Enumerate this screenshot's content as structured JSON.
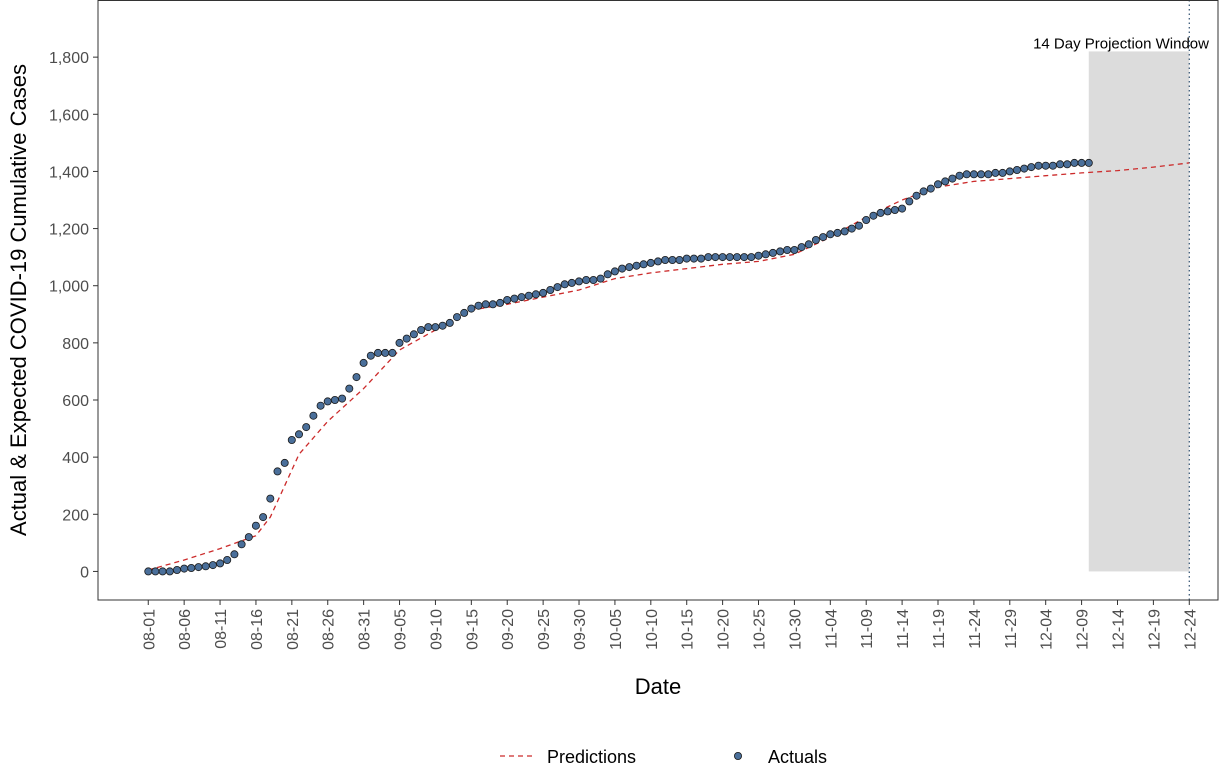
{
  "chart_data": {
    "type": "line",
    "xlabel": "Date",
    "ylabel": "Actual & Expected COVID-19 Cumulative Cases",
    "ylim": [
      -100,
      2000
    ],
    "xlim": [
      "2020-07-25",
      "2020-12-28"
    ],
    "yticks": [
      0,
      200,
      400,
      600,
      800,
      1000,
      1200,
      1400,
      1600,
      1800
    ],
    "ytick_labels": [
      "0",
      "200",
      "400",
      "600",
      "800",
      "1,000",
      "1,200",
      "1,400",
      "1,600",
      "1,800"
    ],
    "xtick_labels": [
      "08-01",
      "08-06",
      "08-11",
      "08-16",
      "08-21",
      "08-26",
      "08-31",
      "09-05",
      "09-10",
      "09-15",
      "09-20",
      "09-25",
      "09-30",
      "10-05",
      "10-10",
      "10-15",
      "10-20",
      "10-25",
      "10-30",
      "11-04",
      "11-09",
      "11-14",
      "11-19",
      "11-24",
      "11-29",
      "12-04",
      "12-09",
      "12-14",
      "12-19",
      "12-24"
    ],
    "xtick_dates": [
      "2020-08-01",
      "2020-08-06",
      "2020-08-11",
      "2020-08-16",
      "2020-08-21",
      "2020-08-26",
      "2020-08-31",
      "2020-09-05",
      "2020-09-10",
      "2020-09-15",
      "2020-09-20",
      "2020-09-25",
      "2020-09-30",
      "2020-10-05",
      "2020-10-10",
      "2020-10-15",
      "2020-10-20",
      "2020-10-25",
      "2020-10-30",
      "2020-11-04",
      "2020-11-09",
      "2020-11-14",
      "2020-11-19",
      "2020-11-24",
      "2020-11-29",
      "2020-12-04",
      "2020-12-09",
      "2020-12-14",
      "2020-12-19",
      "2020-12-24"
    ],
    "grid": false,
    "legend_position": "bottom",
    "annotation": {
      "text": "14 Day Projection Window",
      "x_start": "2020-12-10",
      "x_end": "2020-12-24",
      "y_top": 1820,
      "vline_x": "2020-12-24"
    },
    "series": [
      {
        "name": "Predictions",
        "style": "dashed-line",
        "color": "#cc2b2b",
        "x": [
          "2020-08-01",
          "2020-08-06",
          "2020-08-11",
          "2020-08-16",
          "2020-08-18",
          "2020-08-20",
          "2020-08-22",
          "2020-08-26",
          "2020-08-31",
          "2020-09-05",
          "2020-09-10",
          "2020-09-15",
          "2020-09-20",
          "2020-09-25",
          "2020-09-30",
          "2020-10-05",
          "2020-10-10",
          "2020-10-15",
          "2020-10-20",
          "2020-10-25",
          "2020-10-30",
          "2020-11-04",
          "2020-11-09",
          "2020-11-14",
          "2020-11-19",
          "2020-11-24",
          "2020-11-29",
          "2020-12-04",
          "2020-12-09",
          "2020-12-14",
          "2020-12-19",
          "2020-12-24"
        ],
        "values": [
          5,
          40,
          80,
          125,
          190,
          300,
          410,
          525,
          640,
          775,
          845,
          915,
          935,
          960,
          985,
          1025,
          1045,
          1060,
          1075,
          1085,
          1110,
          1170,
          1240,
          1300,
          1345,
          1365,
          1375,
          1385,
          1395,
          1403,
          1415,
          1430
        ]
      },
      {
        "name": "Actuals",
        "style": "points",
        "color": "#4a6f9a",
        "x": [
          "2020-08-01",
          "2020-08-02",
          "2020-08-03",
          "2020-08-04",
          "2020-08-05",
          "2020-08-06",
          "2020-08-07",
          "2020-08-08",
          "2020-08-09",
          "2020-08-10",
          "2020-08-11",
          "2020-08-12",
          "2020-08-13",
          "2020-08-14",
          "2020-08-15",
          "2020-08-16",
          "2020-08-17",
          "2020-08-18",
          "2020-08-19",
          "2020-08-20",
          "2020-08-21",
          "2020-08-22",
          "2020-08-23",
          "2020-08-24",
          "2020-08-25",
          "2020-08-26",
          "2020-08-27",
          "2020-08-28",
          "2020-08-29",
          "2020-08-30",
          "2020-08-31",
          "2020-09-01",
          "2020-09-02",
          "2020-09-03",
          "2020-09-04",
          "2020-09-05",
          "2020-09-06",
          "2020-09-07",
          "2020-09-08",
          "2020-09-09",
          "2020-09-10",
          "2020-09-11",
          "2020-09-12",
          "2020-09-13",
          "2020-09-14",
          "2020-09-15",
          "2020-09-16",
          "2020-09-17",
          "2020-09-18",
          "2020-09-19",
          "2020-09-20",
          "2020-09-21",
          "2020-09-22",
          "2020-09-23",
          "2020-09-24",
          "2020-09-25",
          "2020-09-26",
          "2020-09-27",
          "2020-09-28",
          "2020-09-29",
          "2020-09-30",
          "2020-10-01",
          "2020-10-02",
          "2020-10-03",
          "2020-10-04",
          "2020-10-05",
          "2020-10-06",
          "2020-10-07",
          "2020-10-08",
          "2020-10-09",
          "2020-10-10",
          "2020-10-11",
          "2020-10-12",
          "2020-10-13",
          "2020-10-14",
          "2020-10-15",
          "2020-10-16",
          "2020-10-17",
          "2020-10-18",
          "2020-10-19",
          "2020-10-20",
          "2020-10-21",
          "2020-10-22",
          "2020-10-23",
          "2020-10-24",
          "2020-10-25",
          "2020-10-26",
          "2020-10-27",
          "2020-10-28",
          "2020-10-29",
          "2020-10-30",
          "2020-10-31",
          "2020-11-01",
          "2020-11-02",
          "2020-11-03",
          "2020-11-04",
          "2020-11-05",
          "2020-11-06",
          "2020-11-07",
          "2020-11-08",
          "2020-11-09",
          "2020-11-10",
          "2020-11-11",
          "2020-11-12",
          "2020-11-13",
          "2020-11-14",
          "2020-11-15",
          "2020-11-16",
          "2020-11-17",
          "2020-11-18",
          "2020-11-19",
          "2020-11-20",
          "2020-11-21",
          "2020-11-22",
          "2020-11-23",
          "2020-11-24",
          "2020-11-25",
          "2020-11-26",
          "2020-11-27",
          "2020-11-28",
          "2020-11-29",
          "2020-11-30",
          "2020-12-01",
          "2020-12-02",
          "2020-12-03",
          "2020-12-04",
          "2020-12-05",
          "2020-12-06",
          "2020-12-07",
          "2020-12-08",
          "2020-12-09",
          "2020-12-10"
        ],
        "values": [
          0,
          0,
          0,
          0,
          5,
          10,
          12,
          15,
          18,
          22,
          28,
          40,
          60,
          95,
          120,
          160,
          190,
          255,
          350,
          380,
          460,
          480,
          505,
          545,
          580,
          595,
          600,
          605,
          640,
          680,
          730,
          755,
          765,
          765,
          765,
          800,
          815,
          830,
          845,
          855,
          855,
          860,
          870,
          890,
          905,
          920,
          930,
          935,
          935,
          940,
          950,
          955,
          960,
          965,
          970,
          975,
          985,
          995,
          1005,
          1010,
          1015,
          1020,
          1020,
          1025,
          1040,
          1050,
          1060,
          1065,
          1070,
          1075,
          1080,
          1085,
          1090,
          1090,
          1090,
          1095,
          1095,
          1095,
          1100,
          1100,
          1100,
          1100,
          1100,
          1100,
          1100,
          1105,
          1110,
          1115,
          1120,
          1125,
          1125,
          1135,
          1145,
          1160,
          1170,
          1180,
          1185,
          1190,
          1200,
          1210,
          1230,
          1245,
          1255,
          1260,
          1265,
          1270,
          1295,
          1315,
          1330,
          1340,
          1355,
          1365,
          1375,
          1385,
          1390,
          1390,
          1390,
          1390,
          1395,
          1395,
          1400,
          1405,
          1410,
          1415,
          1420,
          1420,
          1420,
          1425,
          1425,
          1430,
          1430,
          1430
        ]
      }
    ]
  },
  "colors": {
    "prediction_line": "#cc2b2b",
    "actual_fill": "#4a6f9a",
    "actual_stroke": "#1a1a1a",
    "projection_band": "#dcdcdc",
    "panel_border": "#333333",
    "vline": "#2f4f6f"
  }
}
